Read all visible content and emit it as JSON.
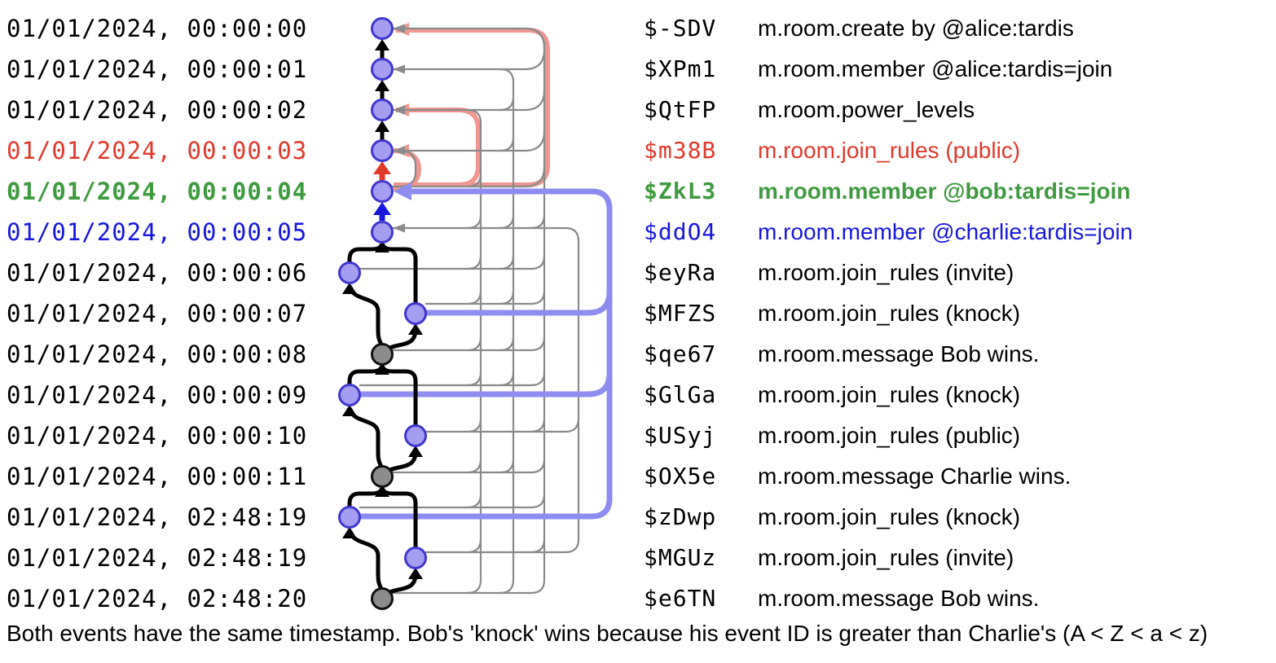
{
  "caption": "Both events have the same timestamp. Bob's 'knock' wins because his event ID is greater than Charlie's (A < Z < a < z)",
  "rows": [
    {
      "time": "01/01/2024, 00:00:00",
      "id": "$-SDV",
      "desc": "m.room.create by @alice:tardis",
      "color": "black",
      "bold": false
    },
    {
      "time": "01/01/2024, 00:00:01",
      "id": "$XPm1",
      "desc": "m.room.member @alice:tardis=join",
      "color": "black",
      "bold": false
    },
    {
      "time": "01/01/2024, 00:00:02",
      "id": "$QtFP",
      "desc": "m.room.power_levels",
      "color": "black",
      "bold": false
    },
    {
      "time": "01/01/2024, 00:00:03",
      "id": "$m38B",
      "desc": "m.room.join_rules (public)",
      "color": "red",
      "bold": false
    },
    {
      "time": "01/01/2024, 00:00:04",
      "id": "$ZkL3",
      "desc": "m.room.member @bob:tardis=join",
      "color": "green",
      "bold": true
    },
    {
      "time": "01/01/2024, 00:00:05",
      "id": "$ddO4",
      "desc": "m.room.member @charlie:tardis=join",
      "color": "blue",
      "bold": false
    },
    {
      "time": "01/01/2024, 00:00:06",
      "id": "$eyRa",
      "desc": "m.room.join_rules (invite)",
      "color": "black",
      "bold": false
    },
    {
      "time": "01/01/2024, 00:00:07",
      "id": "$MFZS",
      "desc": "m.room.join_rules (knock)",
      "color": "black",
      "bold": false
    },
    {
      "time": "01/01/2024, 00:00:08",
      "id": "$qe67",
      "desc": "m.room.message Bob wins.",
      "color": "black",
      "bold": false
    },
    {
      "time": "01/01/2024, 00:00:09",
      "id": "$GlGa",
      "desc": "m.room.join_rules (knock)",
      "color": "black",
      "bold": false
    },
    {
      "time": "01/01/2024, 00:00:10",
      "id": "$USyj",
      "desc": "m.room.join_rules (public)",
      "color": "black",
      "bold": false
    },
    {
      "time": "01/01/2024, 00:00:11",
      "id": "$OX5e",
      "desc": "m.room.message Charlie wins.",
      "color": "black",
      "bold": false
    },
    {
      "time": "01/01/2024, 02:48:19",
      "id": "$zDwp",
      "desc": "m.room.join_rules (knock)",
      "color": "black",
      "bold": false
    },
    {
      "time": "01/01/2024, 02:48:19",
      "id": "$MGUz",
      "desc": "m.room.join_rules (invite)",
      "color": "black",
      "bold": false
    },
    {
      "time": "01/01/2024, 02:48:20",
      "id": "$e6TN",
      "desc": "m.room.message Bob wins.",
      "color": "black",
      "bold": false
    }
  ],
  "colors": {
    "black": "#000000",
    "red": "#e2382a",
    "green": "#3f9b3f",
    "blue": "#1717dd",
    "salmon": "#f0968f",
    "lavender": "#8d8df0",
    "edge_gray": "#8a8a8a",
    "node_fill": "#a59df1",
    "node_border": "#4038cf",
    "node_gray_fill": "#8c8c8c",
    "background": "#ffffff"
  },
  "graph": {
    "selected_event_id": "$ZkL3",
    "nodes": [
      {
        "id": "$-SDV",
        "row": 1,
        "col": "center",
        "style": "purple"
      },
      {
        "id": "$XPm1",
        "row": 2,
        "col": "center",
        "style": "purple"
      },
      {
        "id": "$QtFP",
        "row": 3,
        "col": "center",
        "style": "purple"
      },
      {
        "id": "$m38B",
        "row": 4,
        "col": "center",
        "style": "purple"
      },
      {
        "id": "$ZkL3",
        "row": 5,
        "col": "center",
        "style": "purple"
      },
      {
        "id": "$ddO4",
        "row": 6,
        "col": "center",
        "style": "purple"
      },
      {
        "id": "$eyRa",
        "row": 7,
        "col": "left",
        "style": "purple"
      },
      {
        "id": "$MFZS",
        "row": 8,
        "col": "right",
        "style": "purple"
      },
      {
        "id": "$qe67",
        "row": 9,
        "col": "center",
        "style": "gray"
      },
      {
        "id": "$GlGa",
        "row": 10,
        "col": "left",
        "style": "purple"
      },
      {
        "id": "$USyj",
        "row": 11,
        "col": "right",
        "style": "purple"
      },
      {
        "id": "$OX5e",
        "row": 12,
        "col": "center",
        "style": "gray"
      },
      {
        "id": "$zDwp",
        "row": 13,
        "col": "left",
        "style": "purple"
      },
      {
        "id": "$MGUz",
        "row": 14,
        "col": "right",
        "style": "purple"
      },
      {
        "id": "$e6TN",
        "row": 15,
        "col": "center",
        "style": "gray"
      }
    ],
    "prev_edges_black": [
      [
        "$XPm1",
        "$-SDV"
      ],
      [
        "$QtFP",
        "$XPm1"
      ],
      [
        "$m38B",
        "$QtFP"
      ],
      [
        "$eyRa",
        "$ddO4"
      ],
      [
        "$MFZS",
        "$ddO4"
      ],
      [
        "$qe67",
        "$eyRa"
      ],
      [
        "$qe67",
        "$MFZS"
      ],
      [
        "$GlGa",
        "$qe67"
      ],
      [
        "$USyj",
        "$qe67"
      ],
      [
        "$OX5e",
        "$GlGa"
      ],
      [
        "$OX5e",
        "$USyj"
      ],
      [
        "$zDwp",
        "$OX5e"
      ],
      [
        "$MGUz",
        "$OX5e"
      ],
      [
        "$e6TN",
        "$zDwp"
      ],
      [
        "$e6TN",
        "$MGUz"
      ]
    ],
    "red_prev_edge": [
      "$ZkL3",
      "$m38B"
    ],
    "blue_next_edge": [
      "$ddO4",
      "$ZkL3"
    ],
    "salmon_auth_edges_from_selected": [
      "$-SDV",
      "$QtFP",
      "$m38B"
    ],
    "lavender_edges_referencing_selected": [
      "$MFZS",
      "$GlGa",
      "$zDwp"
    ]
  }
}
